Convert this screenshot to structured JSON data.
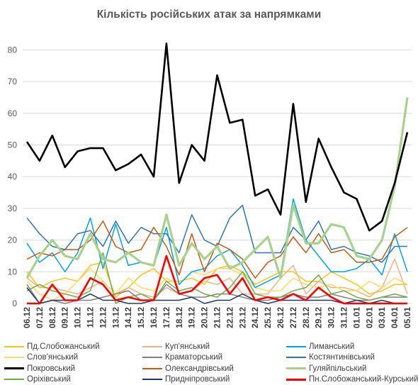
{
  "chart_data": {
    "type": "line",
    "title": "Кількість російських атак за напрямками",
    "xlabel": "",
    "ylabel": "",
    "ylim": [
      0,
      85
    ],
    "yticks": [
      0,
      10,
      20,
      30,
      40,
      50,
      60,
      70,
      80
    ],
    "grid": true,
    "legend_position": "bottom",
    "categories": [
      "06.12",
      "07.12",
      "08.12",
      "09.12",
      "10.12",
      "11.12",
      "12.12",
      "13.12",
      "14.12",
      "15.12",
      "16.12",
      "17.12",
      "18.12",
      "19.12",
      "20.12",
      "21.12",
      "22.12",
      "23.12",
      "24.12",
      "25.12",
      "26.12",
      "27.12",
      "28.12",
      "29.12",
      "30.12",
      "31.12",
      "01.01",
      "02.01",
      "03.01",
      "04.01",
      "05.01"
    ],
    "series": [
      {
        "name": "Пд.Слобожанський",
        "color": "#f5c518",
        "values": [
          10,
          5,
          7,
          8,
          7,
          12,
          13,
          2,
          5,
          9,
          11,
          7,
          7,
          8,
          6,
          11,
          12,
          10,
          6,
          8,
          10,
          10,
          7,
          7,
          10,
          8,
          6,
          3,
          4,
          6,
          6
        ]
      },
      {
        "name": "Куп'янський",
        "color": "#f4b183",
        "values": [
          8,
          5,
          5,
          4,
          3,
          5,
          7,
          3,
          5,
          3,
          2,
          5,
          3,
          4,
          7,
          6,
          8,
          3,
          3,
          3,
          8,
          12,
          3,
          7,
          5,
          5,
          4,
          2,
          5,
          14,
          3
        ]
      },
      {
        "name": "Лиманський",
        "color": "#00a2e8",
        "values": [
          19,
          13,
          16,
          10,
          16,
          27,
          11,
          25,
          12,
          13,
          12,
          24,
          6,
          10,
          11,
          15,
          17,
          12,
          5,
          7,
          9,
          33,
          20,
          15,
          10,
          10,
          11,
          14,
          9,
          22,
          10
        ]
      },
      {
        "name": "Слов'янський",
        "color": "#ffd966",
        "values": [
          7,
          3,
          1,
          3,
          7,
          11,
          7,
          3,
          8,
          5,
          4,
          8,
          6,
          10,
          9,
          11,
          11,
          9,
          5,
          4,
          4,
          8,
          6,
          5,
          6,
          4,
          4,
          7,
          5,
          8,
          6
        ]
      },
      {
        "name": "Краматорський",
        "color": "#808080",
        "values": [
          6,
          0,
          1,
          0,
          1,
          1,
          2,
          3,
          4,
          1,
          1,
          6,
          3,
          2,
          2,
          3,
          3,
          2,
          1,
          1,
          2,
          3,
          2,
          2,
          3,
          2,
          1,
          1,
          2,
          2,
          2
        ]
      },
      {
        "name": "Костянтинівський",
        "color": "#2e75b6",
        "values": [
          27,
          22,
          18,
          17,
          22,
          23,
          18,
          26,
          19,
          24,
          22,
          22,
          16,
          28,
          20,
          18,
          27,
          31,
          16,
          16,
          16,
          24,
          20,
          26,
          17,
          18,
          16,
          15,
          13,
          18,
          18
        ]
      },
      {
        "name": "Покровський",
        "color": "#000000",
        "values": [
          51,
          45,
          53,
          43,
          48,
          49,
          49,
          42,
          44,
          47,
          40,
          82,
          38,
          50,
          45,
          72,
          57,
          58,
          34,
          36,
          28,
          63,
          32,
          52,
          43,
          35,
          33,
          23,
          26,
          38,
          54
        ]
      },
      {
        "name": "Олександрівський",
        "color": "#c55a11",
        "values": [
          14,
          16,
          15,
          17,
          17,
          20,
          26,
          18,
          16,
          17,
          24,
          18,
          9,
          22,
          10,
          19,
          17,
          14,
          8,
          13,
          15,
          21,
          16,
          22,
          16,
          17,
          13,
          13,
          14,
          21,
          24
        ]
      },
      {
        "name": "Гуляйпільський",
        "color": "#a9d18e",
        "values": [
          8,
          15,
          20,
          15,
          14,
          22,
          14,
          13,
          16,
          13,
          12,
          28,
          12,
          19,
          14,
          18,
          11,
          13,
          17,
          21,
          8,
          31,
          19,
          19,
          25,
          24,
          15,
          14,
          20,
          37,
          65
        ]
      },
      {
        "name": "Оріхівський",
        "color": "#70ad47",
        "values": [
          4,
          6,
          4,
          3,
          2,
          4,
          16,
          0,
          2,
          3,
          1,
          7,
          4,
          5,
          3,
          2,
          5,
          10,
          3,
          2,
          2,
          4,
          5,
          9,
          3,
          4,
          2,
          1,
          2,
          3,
          2
        ]
      },
      {
        "name": "Придніпровський",
        "color": "#203864",
        "values": [
          5,
          0,
          1,
          1,
          1,
          3,
          1,
          1,
          0,
          0,
          1,
          1,
          1,
          2,
          0,
          1,
          1,
          3,
          1,
          0,
          1,
          1,
          1,
          1,
          1,
          0,
          1,
          0,
          1,
          0,
          0
        ]
      },
      {
        "name": "Пн.Слобожанський-Курський",
        "color": "#ff0000",
        "values": [
          0,
          0,
          6,
          1,
          1,
          8,
          6,
          1,
          2,
          1,
          1,
          15,
          3,
          4,
          8,
          9,
          3,
          8,
          1,
          2,
          1,
          3,
          1,
          5,
          2,
          0,
          0,
          0,
          0,
          0,
          0
        ]
      }
    ]
  }
}
